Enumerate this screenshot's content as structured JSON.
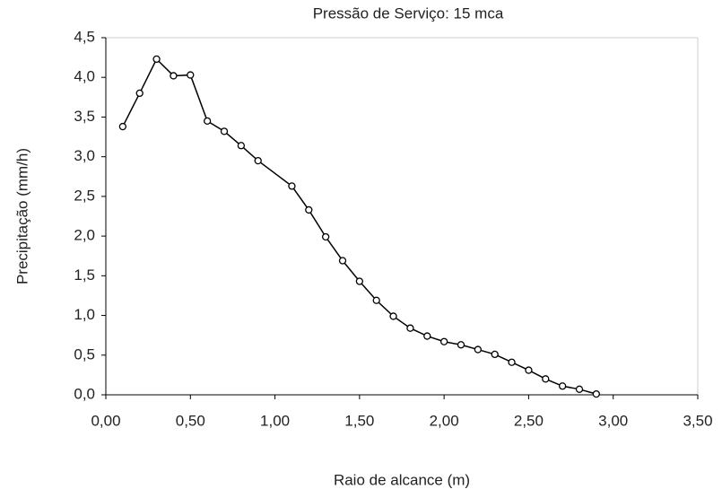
{
  "chart_data": {
    "type": "line",
    "title": "Pressão de Serviço: 15 mca",
    "xlabel": "Raio de alcance (m)",
    "ylabel": "Precipitação (mm/h)",
    "x": [
      0.1,
      0.2,
      0.3,
      0.4,
      0.5,
      0.6,
      0.7,
      0.8,
      0.9,
      1.1,
      1.2,
      1.3,
      1.4,
      1.5,
      1.6,
      1.7,
      1.8,
      1.9,
      2.0,
      2.1,
      2.2,
      2.3,
      2.4,
      2.5,
      2.6,
      2.7,
      2.8,
      2.9
    ],
    "series": [
      {
        "color": "#000000",
        "values": [
          3.38,
          3.8,
          4.23,
          4.02,
          4.03,
          3.45,
          3.32,
          3.14,
          2.95,
          2.63,
          2.33,
          1.99,
          1.69,
          1.43,
          1.19,
          0.99,
          0.84,
          0.74,
          0.67,
          0.63,
          0.57,
          0.51,
          0.41,
          0.31,
          0.2,
          0.11,
          0.07,
          0.01
        ]
      }
    ],
    "xlim": [
      0,
      3.5
    ],
    "ylim": [
      0,
      4.5
    ],
    "xticks": [
      {
        "value": 0,
        "label": "0,00"
      },
      {
        "value": 0.5,
        "label": "0,50"
      },
      {
        "value": 1,
        "label": "1,00"
      },
      {
        "value": 1.5,
        "label": "1,50"
      },
      {
        "value": 2,
        "label": "2,00"
      },
      {
        "value": 2.5,
        "label": "2,50"
      },
      {
        "value": 3,
        "label": "3,00"
      },
      {
        "value": 3.5,
        "label": "3,50"
      }
    ],
    "yticks": [
      {
        "value": 0,
        "label": "0,0"
      },
      {
        "value": 0.5,
        "label": "0,5"
      },
      {
        "value": 1,
        "label": "1,0"
      },
      {
        "value": 1.5,
        "label": "1,5"
      },
      {
        "value": 2,
        "label": "2,0"
      },
      {
        "value": 2.5,
        "label": "2,5"
      },
      {
        "value": 3,
        "label": "3,0"
      },
      {
        "value": 3.5,
        "label": "3,5"
      },
      {
        "value": 4,
        "label": "4,0"
      },
      {
        "value": 4.5,
        "label": "4,5"
      }
    ],
    "grid": false
  }
}
